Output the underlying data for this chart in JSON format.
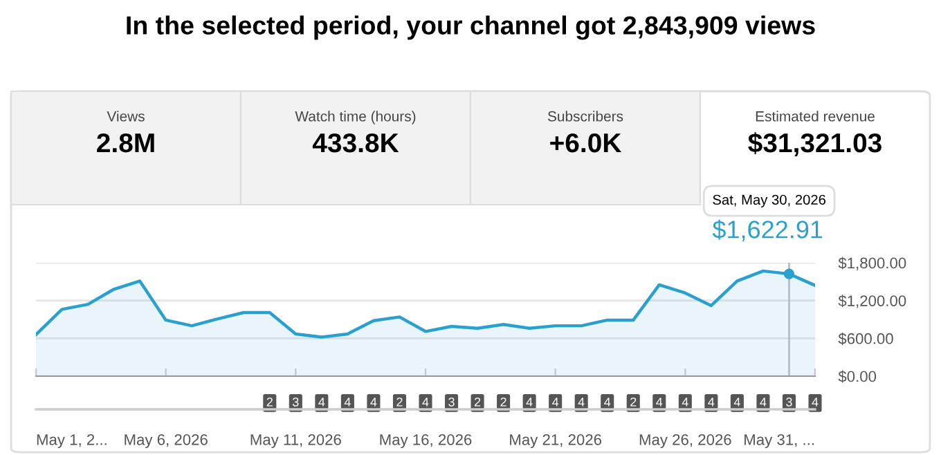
{
  "chart_data": {
    "type": "area",
    "title": "In the selected period, your channel got 2,843,909 views",
    "x": [
      "2026-05-01",
      "2026-05-02",
      "2026-05-03",
      "2026-05-04",
      "2026-05-05",
      "2026-05-06",
      "2026-05-07",
      "2026-05-08",
      "2026-05-09",
      "2026-05-10",
      "2026-05-11",
      "2026-05-12",
      "2026-05-13",
      "2026-05-14",
      "2026-05-15",
      "2026-05-16",
      "2026-05-17",
      "2026-05-18",
      "2026-05-19",
      "2026-05-20",
      "2026-05-21",
      "2026-05-22",
      "2026-05-23",
      "2026-05-24",
      "2026-05-25",
      "2026-05-26",
      "2026-05-27",
      "2026-05-28",
      "2026-05-29",
      "2026-05-30",
      "2026-05-31"
    ],
    "series": [
      {
        "color": "#2aa0cf",
        "values": [
          660,
          1060,
          1140,
          1380,
          1510,
          890,
          800,
          910,
          1010,
          1010,
          670,
          620,
          670,
          880,
          940,
          710,
          790,
          760,
          820,
          760,
          800,
          800,
          890,
          890,
          1450,
          1320,
          1120,
          1510,
          1670,
          1622.91,
          1440
        ]
      }
    ],
    "xlim": [
      "2026-05-01",
      "2026-05-31"
    ],
    "xticks": [
      {
        "value": "2026-05-01",
        "label": "May 1, 2..."
      },
      {
        "value": "2026-05-06",
        "label": "May 6, 2026"
      },
      {
        "value": "2026-05-11",
        "label": "May 11, 2026"
      },
      {
        "value": "2026-05-16",
        "label": "May 16, 2026"
      },
      {
        "value": "2026-05-21",
        "label": "May 21, 2026"
      },
      {
        "value": "2026-05-26",
        "label": "May 26, 2026"
      },
      {
        "value": "2026-05-31",
        "label": "May 31, ..."
      }
    ],
    "ylim": [
      0,
      1800
    ],
    "yticks": [
      {
        "value": 0,
        "label": "$0.00"
      },
      {
        "value": 600,
        "label": "$600.00"
      },
      {
        "value": 1200,
        "label": "$1,200.00"
      },
      {
        "value": 1800,
        "label": "$1,800.00"
      }
    ],
    "grid": "y",
    "ref_lines": [
      {
        "axis": "x",
        "value": "2026-05-30",
        "color": "#b0bec5"
      }
    ],
    "annotations": [
      "Views",
      "2.8M",
      "Watch time (hours)",
      "433.8K",
      "Subscribers",
      "+6.0K",
      "Estimated revenue",
      "$31,321.03",
      "Sat, May 30, 2026",
      {
        "text": "$1,622.91",
        "x": "2026-05-30",
        "y": 1622.91
      },
      "2",
      "3",
      "4",
      "4",
      "4",
      "2",
      "4",
      "3",
      "2",
      "2",
      "4",
      "4",
      "4",
      "4",
      "2",
      "4",
      "4",
      "4",
      "4",
      "4",
      "3",
      "4"
    ]
  }
}
